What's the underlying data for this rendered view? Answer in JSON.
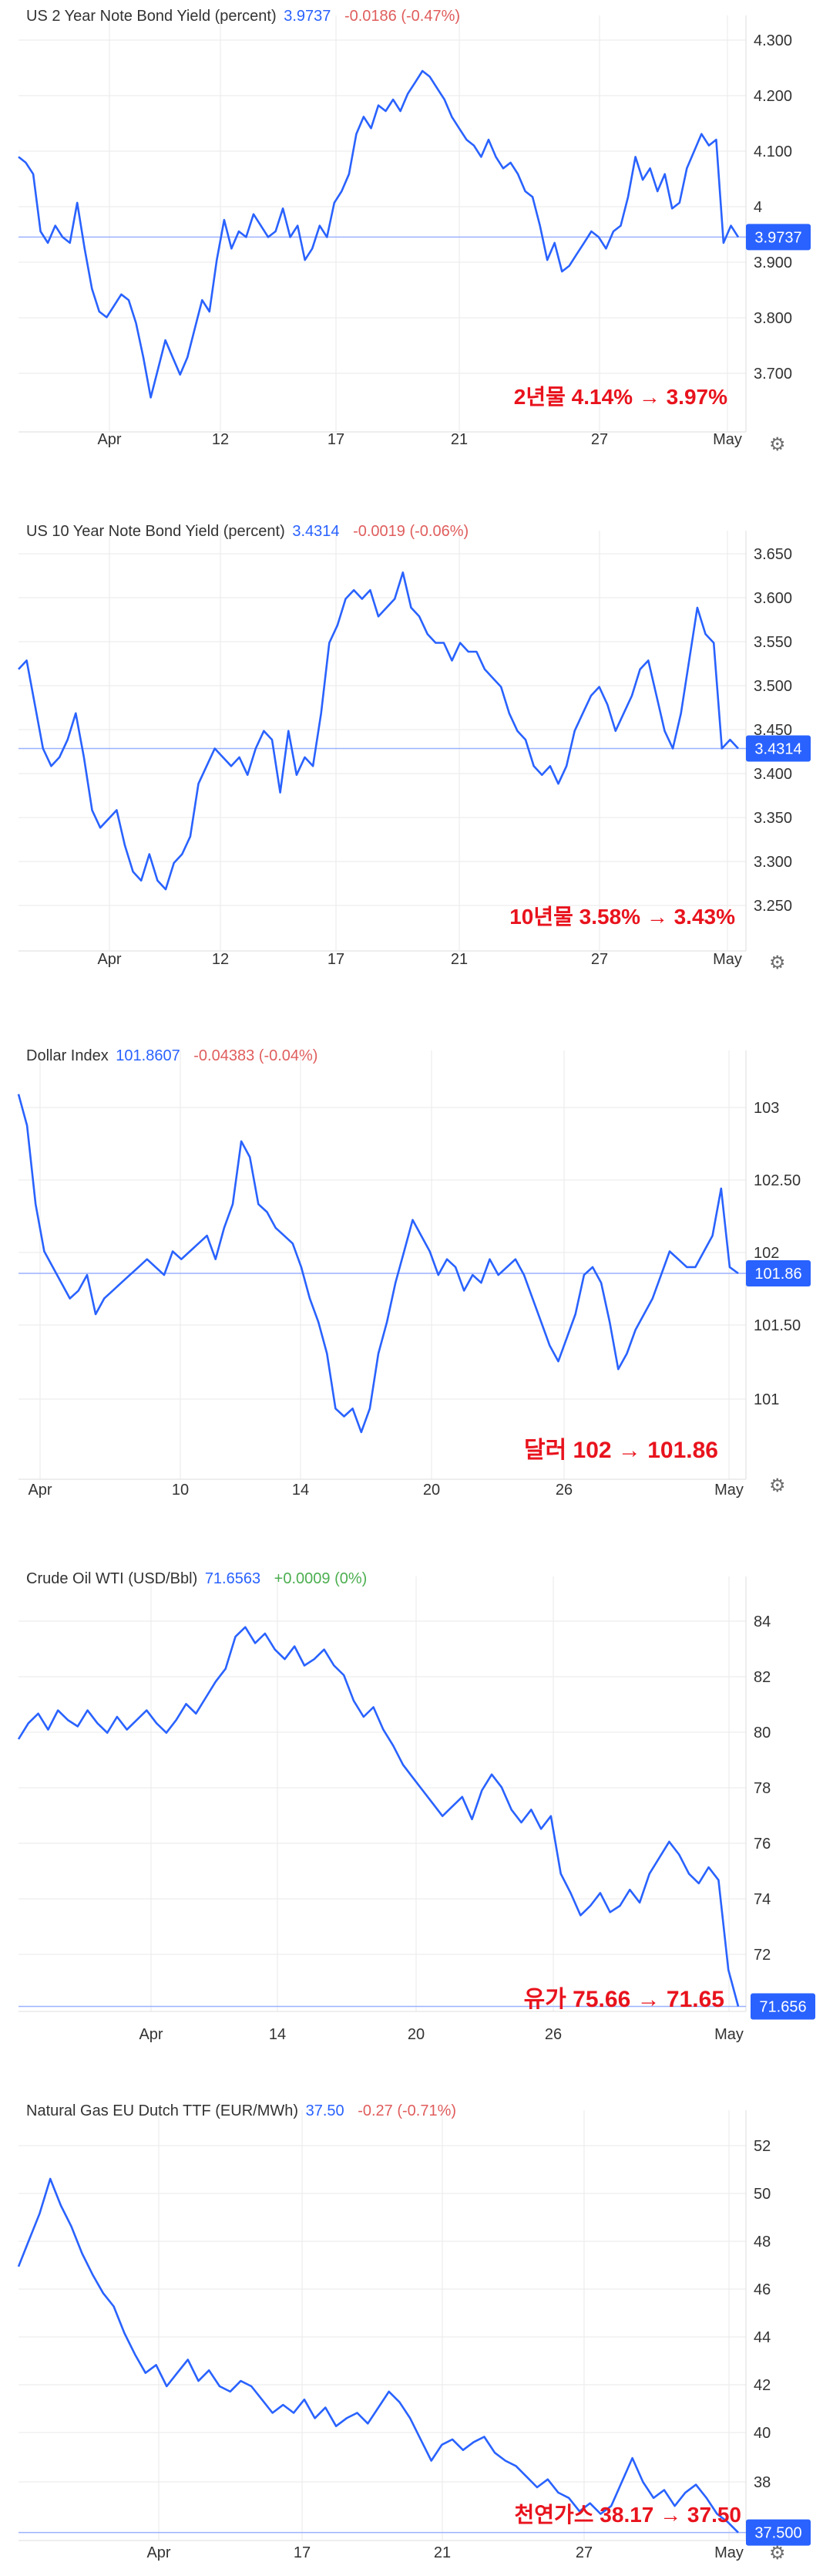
{
  "colors": {
    "line": "#2962ff",
    "negative": "#e05d5d",
    "positive": "#4caf50",
    "annotation": "#e8131d",
    "grid": "#eaeaea",
    "tick_text": "#333333",
    "badge_bg": "#2962ff"
  },
  "chart_data": [
    {
      "type": "line",
      "title": "US 2 Year Note Bond Yield (percent)",
      "last_value": "3.9737",
      "change": "-0.0186 (-0.47%)",
      "change_sign": "negative",
      "badge": "3.9737",
      "annotation": "2년물 4.14% → 3.97%",
      "x_ticks": [
        "Apr",
        "12",
        "17",
        "21",
        "27",
        "May"
      ],
      "y_ticks": [
        "4.300",
        "4.200",
        "4.100",
        "4",
        "3.900",
        "3.800",
        "3.700"
      ],
      "ylim": [
        3.63,
        4.33
      ],
      "series": [
        {
          "values": [
            4.11,
            4.1,
            4.08,
            3.98,
            3.96,
            3.99,
            3.97,
            3.96,
            4.03,
            3.95,
            3.88,
            3.84,
            3.83,
            3.85,
            3.87,
            3.86,
            3.82,
            3.76,
            3.69,
            3.74,
            3.79,
            3.76,
            3.73,
            3.76,
            3.81,
            3.86,
            3.84,
            3.93,
            4.0,
            3.95,
            3.98,
            3.97,
            4.01,
            3.99,
            3.97,
            3.98,
            4.02,
            3.97,
            3.99,
            3.93,
            3.95,
            3.99,
            3.97,
            4.03,
            4.05,
            4.08,
            4.15,
            4.18,
            4.16,
            4.2,
            4.19,
            4.21,
            4.19,
            4.22,
            4.24,
            4.26,
            4.25,
            4.23,
            4.21,
            4.18,
            4.16,
            4.14,
            4.13,
            4.11,
            4.14,
            4.11,
            4.09,
            4.1,
            4.08,
            4.05,
            4.04,
            3.99,
            3.93,
            3.96,
            3.91,
            3.92,
            3.94,
            3.96,
            3.98,
            3.97,
            3.95,
            3.98,
            3.99,
            4.04,
            4.11,
            4.07,
            4.09,
            4.05,
            4.08,
            4.02,
            4.03,
            4.09,
            4.12,
            4.15,
            4.13,
            4.14,
            3.96,
            3.99,
            3.97
          ]
        }
      ]
    },
    {
      "type": "line",
      "title": "US 10 Year Note Bond Yield (percent)",
      "last_value": "3.4314",
      "change": "-0.0019 (-0.06%)",
      "change_sign": "negative",
      "badge": "3.4314",
      "annotation": "10년물 3.58% → 3.43%",
      "x_ticks": [
        "Apr",
        "12",
        "17",
        "21",
        "27",
        "May"
      ],
      "y_ticks": [
        "3.650",
        "3.600",
        "3.550",
        "3.500",
        "3.450",
        "3.400",
        "3.350",
        "3.300",
        "3.250"
      ],
      "ylim": [
        3.2,
        3.66
      ],
      "series": [
        {
          "values": [
            3.52,
            3.53,
            3.48,
            3.43,
            3.41,
            3.42,
            3.44,
            3.47,
            3.42,
            3.36,
            3.34,
            3.35,
            3.36,
            3.32,
            3.29,
            3.28,
            3.31,
            3.28,
            3.27,
            3.3,
            3.31,
            3.33,
            3.39,
            3.41,
            3.43,
            3.42,
            3.41,
            3.42,
            3.4,
            3.43,
            3.45,
            3.44,
            3.38,
            3.45,
            3.4,
            3.42,
            3.41,
            3.47,
            3.55,
            3.57,
            3.6,
            3.61,
            3.6,
            3.61,
            3.58,
            3.59,
            3.6,
            3.63,
            3.59,
            3.58,
            3.56,
            3.55,
            3.55,
            3.53,
            3.55,
            3.54,
            3.54,
            3.52,
            3.51,
            3.5,
            3.47,
            3.45,
            3.44,
            3.41,
            3.4,
            3.41,
            3.39,
            3.41,
            3.45,
            3.47,
            3.49,
            3.5,
            3.48,
            3.45,
            3.47,
            3.49,
            3.52,
            3.53,
            3.49,
            3.45,
            3.43,
            3.47,
            3.53,
            3.59,
            3.56,
            3.55,
            3.43,
            3.44,
            3.43
          ]
        }
      ]
    },
    {
      "type": "line",
      "title": "Dollar Index",
      "last_value": "101.8607",
      "change": "-0.04383 (-0.04%)",
      "change_sign": "negative",
      "badge": "101.86",
      "annotation": "달러 102 → 101.86",
      "x_ticks": [
        "Apr",
        "10",
        "14",
        "20",
        "26",
        "May"
      ],
      "y_ticks": [
        "103",
        "102.50",
        "102",
        "101.50",
        "101"
      ],
      "ylim": [
        100.55,
        103.18
      ],
      "series": [
        {
          "values": [
            103.0,
            102.8,
            102.3,
            102.0,
            101.9,
            101.8,
            101.7,
            101.75,
            101.85,
            101.6,
            101.7,
            101.75,
            101.8,
            101.85,
            101.9,
            101.95,
            101.9,
            101.85,
            102.0,
            101.95,
            102.0,
            102.05,
            102.1,
            101.95,
            102.15,
            102.3,
            102.7,
            102.6,
            102.3,
            102.25,
            102.15,
            102.1,
            102.05,
            101.9,
            101.7,
            101.55,
            101.35,
            101.0,
            100.95,
            101.0,
            100.85,
            101.0,
            101.35,
            101.55,
            101.8,
            102.0,
            102.2,
            102.1,
            102.0,
            101.85,
            101.95,
            101.9,
            101.75,
            101.85,
            101.8,
            101.95,
            101.85,
            101.9,
            101.95,
            101.85,
            101.7,
            101.55,
            101.4,
            101.3,
            101.45,
            101.6,
            101.85,
            101.9,
            101.8,
            101.55,
            101.25,
            101.35,
            101.5,
            101.6,
            101.7,
            101.85,
            102.0,
            101.95,
            101.9,
            101.9,
            102.0,
            102.1,
            102.4,
            101.9,
            101.86
          ]
        }
      ]
    },
    {
      "type": "line",
      "title": "Crude Oil WTI (USD/Bbl)",
      "last_value": "71.6563",
      "change": "+0.0009 (0%)",
      "change_sign": "positive",
      "badge": "71.656",
      "annotation": "유가 75.66 → 71.65",
      "x_ticks": [
        "Apr",
        "14",
        "20",
        "26",
        "May"
      ],
      "y_ticks": [
        "84",
        "82",
        "80",
        "78",
        "76",
        "74",
        "72"
      ],
      "ylim": [
        71.5,
        84.6
      ],
      "series": [
        {
          "values": [
            80.0,
            80.5,
            80.8,
            80.3,
            80.9,
            80.6,
            80.4,
            80.9,
            80.5,
            80.2,
            80.7,
            80.3,
            80.6,
            80.9,
            80.5,
            80.2,
            80.6,
            81.1,
            80.8,
            81.3,
            81.8,
            82.2,
            83.2,
            83.5,
            83.0,
            83.3,
            82.8,
            82.5,
            82.9,
            82.3,
            82.5,
            82.8,
            82.3,
            82.0,
            81.2,
            80.7,
            81.0,
            80.3,
            79.8,
            79.2,
            78.8,
            78.4,
            78.0,
            77.6,
            77.9,
            78.2,
            77.5,
            78.4,
            78.9,
            78.5,
            77.8,
            77.4,
            77.8,
            77.2,
            77.6,
            75.8,
            75.2,
            74.5,
            74.8,
            75.2,
            74.6,
            74.8,
            75.3,
            74.9,
            75.8,
            76.3,
            76.8,
            76.4,
            75.8,
            75.5,
            76.0,
            75.6,
            72.8,
            71.656
          ]
        }
      ]
    },
    {
      "type": "line",
      "title": "Natural Gas EU Dutch TTF (EUR/MWh)",
      "last_value": "37.50",
      "change": "-0.27 (-0.71%)",
      "change_sign": "negative",
      "badge": "37.500",
      "annotation": "천연가스 38.17 → 37.50",
      "x_ticks": [
        "Apr",
        "17",
        "21",
        "27",
        "May"
      ],
      "y_ticks": [
        "52",
        "50",
        "48",
        "46",
        "44",
        "42",
        "40",
        "38"
      ],
      "ylim": [
        37.2,
        52.8
      ],
      "series": [
        {
          "values": [
            47.5,
            48.5,
            49.5,
            50.8,
            49.8,
            49.0,
            48.0,
            47.2,
            46.5,
            46.0,
            45.0,
            44.2,
            43.5,
            43.8,
            43.0,
            43.5,
            44.0,
            43.2,
            43.6,
            43.0,
            42.8,
            43.2,
            43.0,
            42.5,
            42.0,
            42.3,
            42.0,
            42.5,
            41.8,
            42.2,
            41.5,
            41.8,
            42.0,
            41.6,
            42.2,
            42.8,
            42.4,
            41.8,
            41.0,
            40.2,
            40.8,
            41.0,
            40.6,
            40.9,
            41.1,
            40.5,
            40.2,
            40.0,
            39.6,
            39.2,
            39.5,
            39.0,
            38.8,
            38.3,
            38.6,
            38.2,
            38.5,
            39.4,
            40.3,
            39.4,
            38.8,
            39.1,
            38.5,
            39.0,
            39.3,
            38.8,
            38.2,
            37.9,
            37.5
          ]
        }
      ]
    }
  ]
}
